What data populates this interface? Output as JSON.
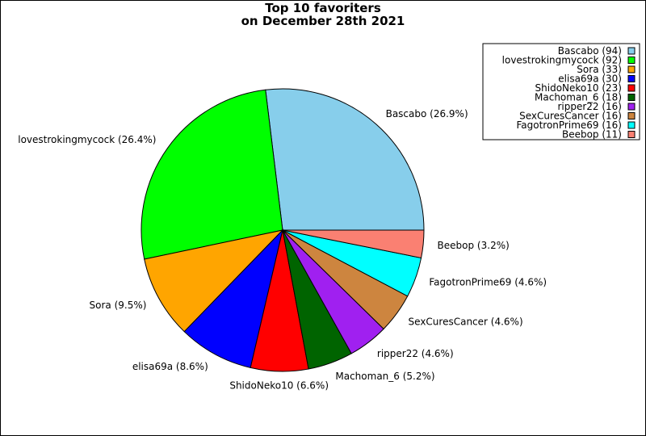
{
  "chart_data": {
    "type": "pie",
    "title_lines": [
      "Top 10 favoriters",
      "on December 28th 2021"
    ],
    "start_angle_deg": 0,
    "direction": "counterclockwise",
    "legend_position": "top-right",
    "slices": [
      {
        "name": "Bascabo",
        "value": 94,
        "label": "Bascabo (26.9%)",
        "legend": "Bascabo (94)",
        "color": "#87CEEB"
      },
      {
        "name": "lovestrokingmycock",
        "value": 92,
        "label": "lovestrokingmycock (26.4%)",
        "legend": "lovestrokingmycock (92)",
        "color": "#00FF00"
      },
      {
        "name": "Sora",
        "value": 33,
        "label": "Sora (9.5%)",
        "legend": "Sora (33)",
        "color": "#FFA500"
      },
      {
        "name": "elisa69a",
        "value": 30,
        "label": "elisa69a (8.6%)",
        "legend": "elisa69a (30)",
        "color": "#0000FF"
      },
      {
        "name": "ShidoNeko10",
        "value": 23,
        "label": "ShidoNeko10 (6.6%)",
        "legend": "ShidoNeko10 (23)",
        "color": "#FF0000"
      },
      {
        "name": "Machoman_6",
        "value": 18,
        "label": "Machoman_6 (5.2%)",
        "legend": "Machoman_6 (18)",
        "color": "#006400"
      },
      {
        "name": "ripper22",
        "value": 16,
        "label": "ripper22 (4.6%)",
        "legend": "ripper22 (16)",
        "color": "#A020F0"
      },
      {
        "name": "SexCuresCancer",
        "value": 16,
        "label": "SexCuresCancer (4.6%)",
        "legend": "SexCuresCancer (16)",
        "color": "#CD853F"
      },
      {
        "name": "FagotronPrime69",
        "value": 16,
        "label": "FagotronPrime69 (4.6%)",
        "legend": "FagotronPrime69 (16)",
        "color": "#00FFFF"
      },
      {
        "name": "Beebop",
        "value": 11,
        "label": "Beebop (3.2%)",
        "legend": "Beebop (11)",
        "color": "#FA8072"
      }
    ]
  }
}
